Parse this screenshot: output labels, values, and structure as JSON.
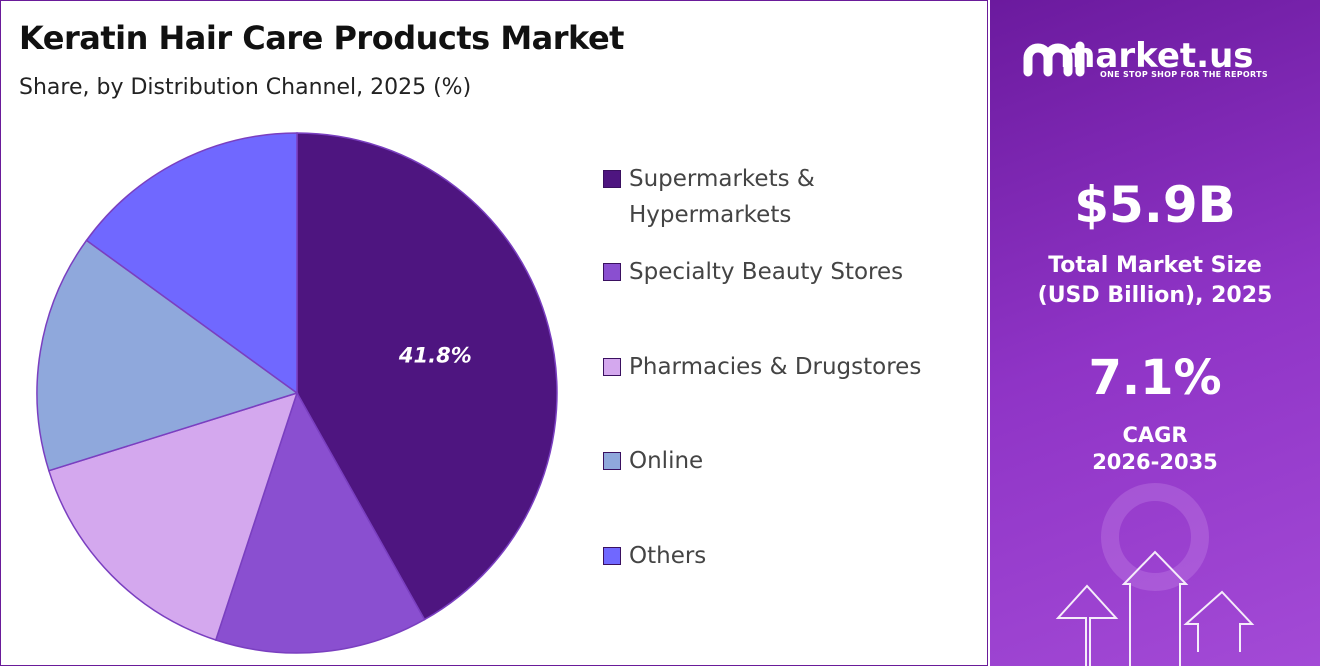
{
  "chart_data": {
    "type": "pie",
    "title": "Keratin Hair Care Products Market",
    "subtitle": "Share, by Distribution Channel, 2025 (%)",
    "categories": [
      "Supermarkets & Hypermarkets",
      "Specialty Beauty Stores",
      "Pharmacies & Drugstores",
      "Online",
      "Others"
    ],
    "values": [
      41.8,
      13.2,
      15.1,
      14.8,
      15.0
    ],
    "value_labels": [
      "41.8%",
      null,
      null,
      null,
      null
    ],
    "colors": [
      "#4e1580",
      "#8a4fd0",
      "#d4a8ee",
      "#8fa8dc",
      "#7068ff"
    ]
  },
  "panel": {
    "brand": "market.us",
    "tagline": "ONE STOP SHOP FOR THE REPORTS",
    "market_size": "$5.9B",
    "market_size_label": "Total Market Size (USD Billion), 2025",
    "cagr": "7.1%",
    "cagr_label": "CAGR",
    "cagr_period": "2026-2035"
  }
}
